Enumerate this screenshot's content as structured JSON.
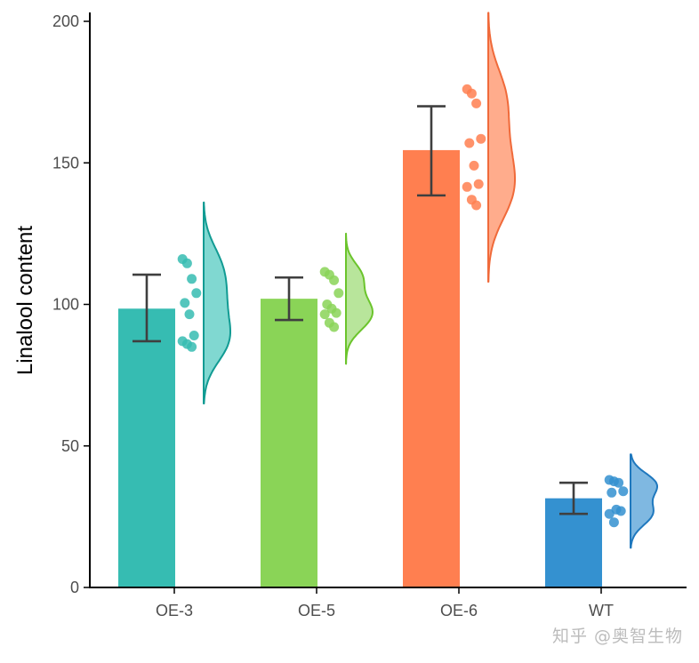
{
  "chart_data": {
    "type": "bar",
    "title": "",
    "xlabel": "",
    "ylabel": "Linalool content",
    "ylim": [
      0,
      200
    ],
    "yticks": [
      0,
      50,
      100,
      150,
      200
    ],
    "categories": [
      "OE-3",
      "OE-5",
      "OE-6",
      "WT"
    ],
    "values": [
      98.5,
      102,
      154.5,
      31.5
    ],
    "error": [
      {
        "low": 87,
        "high": 110.5
      },
      {
        "low": 94.5,
        "high": 109.5
      },
      {
        "low": 138.5,
        "high": 170
      },
      {
        "low": 26,
        "high": 37
      }
    ],
    "points": [
      [
        116,
        114.5,
        109,
        104,
        100.5,
        96.5,
        89,
        87,
        86,
        85
      ],
      [
        111.5,
        110.5,
        108.5,
        104,
        100,
        98.5,
        97,
        96.5,
        93.5,
        92
      ],
      [
        176,
        174.5,
        171,
        158.5,
        157,
        149,
        142.5,
        141.5,
        137,
        135
      ],
      [
        38,
        37.5,
        37,
        34,
        33.5,
        27.5,
        27,
        26,
        23
      ]
    ],
    "violin_range": [
      [
        65,
        136
      ],
      [
        79,
        125
      ],
      [
        108,
        203
      ],
      [
        14,
        47
      ]
    ],
    "colors": [
      "#36bcb2",
      "#8ad457",
      "#ff7f50",
      "#3491d0"
    ],
    "outline_colors": [
      "#119b93",
      "#6bc42c",
      "#f06a3a",
      "#1f78be"
    ],
    "violin_fill_colors": [
      "#80d8d1",
      "#b8e59b",
      "#ffac8c",
      "#7fb8e1"
    ],
    "grid": false,
    "legend": "none"
  },
  "watermark": "知乎 @奥智生物"
}
